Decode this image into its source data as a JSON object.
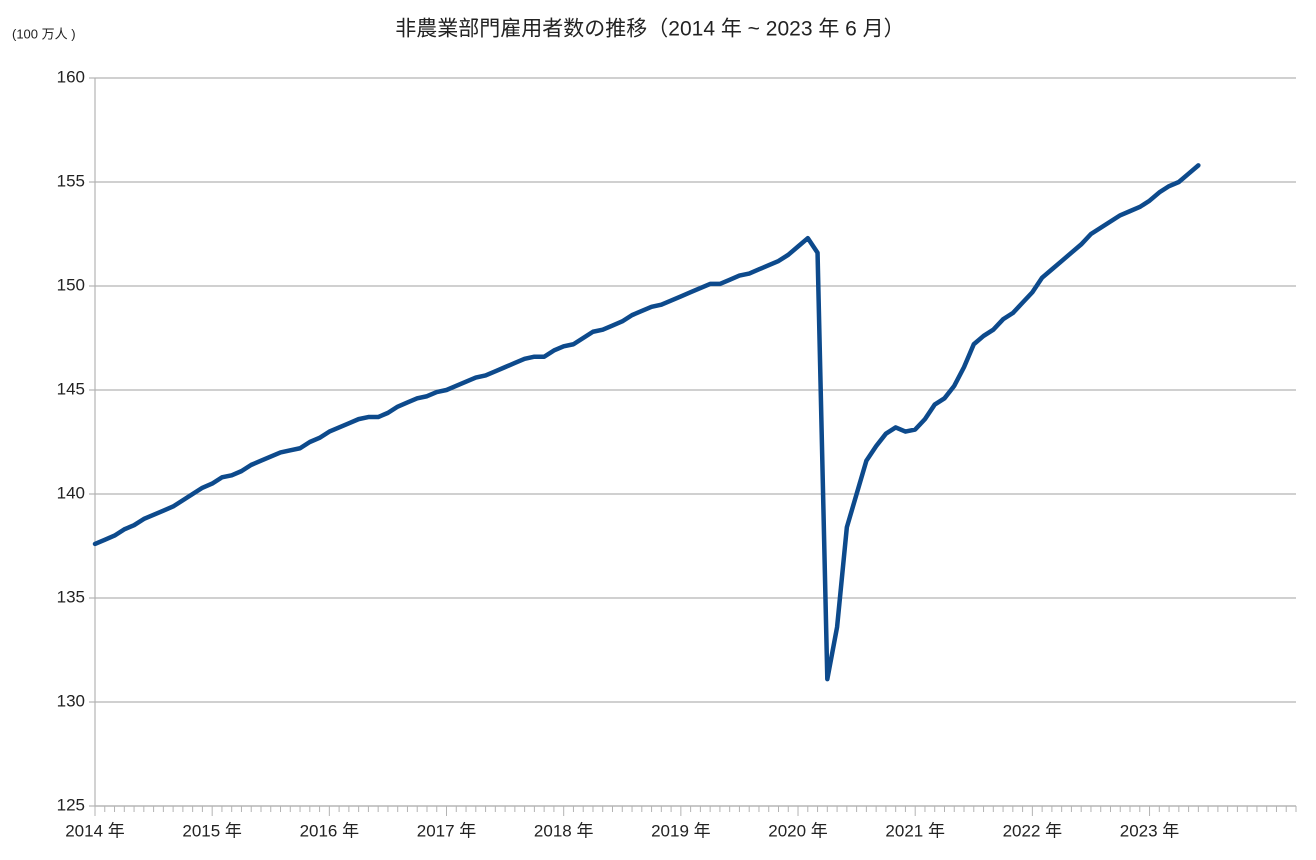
{
  "chart_data": {
    "type": "line",
    "title": "非農業部門雇用者数の推移（2014 年 ~ 2023 年 6 月）",
    "y_unit": "(100 万人 )",
    "categories": [
      "2014 年",
      null,
      null,
      null,
      null,
      null,
      null,
      null,
      null,
      null,
      null,
      null,
      "2015 年",
      null,
      null,
      null,
      null,
      null,
      null,
      null,
      null,
      null,
      null,
      null,
      "2016 年",
      null,
      null,
      null,
      null,
      null,
      null,
      null,
      null,
      null,
      null,
      null,
      "2017 年",
      null,
      null,
      null,
      null,
      null,
      null,
      null,
      null,
      null,
      null,
      null,
      "2018 年",
      null,
      null,
      null,
      null,
      null,
      null,
      null,
      null,
      null,
      null,
      null,
      "2019 年",
      null,
      null,
      null,
      null,
      null,
      null,
      null,
      null,
      null,
      null,
      null,
      "2020 年",
      null,
      null,
      null,
      null,
      null,
      null,
      null,
      null,
      null,
      null,
      null,
      "2021 年",
      null,
      null,
      null,
      null,
      null,
      null,
      null,
      null,
      null,
      null,
      null,
      "2022 年",
      null,
      null,
      null,
      null,
      null,
      null,
      null,
      null,
      null,
      null,
      null,
      "2023 年",
      null,
      null,
      null,
      null,
      null,
      null,
      null,
      null,
      null,
      null,
      null,
      null,
      null,
      null
    ],
    "series": [
      {
        "color": "#0d4a8c",
        "values": [
          137.6,
          137.8,
          138.0,
          138.3,
          138.5,
          138.8,
          139.0,
          139.2,
          139.4,
          139.7,
          140.0,
          140.3,
          140.5,
          140.8,
          140.9,
          141.1,
          141.4,
          141.6,
          141.8,
          142.0,
          142.1,
          142.2,
          142.5,
          142.7,
          143.0,
          143.2,
          143.4,
          143.6,
          143.7,
          143.7,
          143.9,
          144.2,
          144.4,
          144.6,
          144.7,
          144.9,
          145.0,
          145.2,
          145.4,
          145.6,
          145.7,
          145.9,
          146.1,
          146.3,
          146.5,
          146.6,
          146.6,
          146.9,
          147.1,
          147.2,
          147.5,
          147.8,
          147.9,
          148.1,
          148.3,
          148.6,
          148.8,
          149.0,
          149.1,
          149.3,
          149.5,
          149.7,
          149.9,
          150.1,
          150.1,
          150.3,
          150.5,
          150.6,
          150.8,
          151.0,
          151.2,
          151.5,
          151.9,
          152.3,
          151.6,
          131.1,
          133.6,
          138.4,
          140.0,
          141.6,
          142.3,
          142.9,
          143.2,
          143.0,
          143.1,
          143.6,
          144.3,
          144.6,
          145.2,
          146.1,
          147.2,
          147.6,
          147.9,
          148.4,
          148.7,
          149.2,
          149.7,
          150.4,
          150.8,
          151.2,
          151.6,
          152.0,
          152.5,
          152.8,
          153.1,
          153.4,
          153.6,
          153.8,
          154.1,
          154.5,
          154.8,
          155.0,
          155.4,
          155.8,
          null,
          null,
          null,
          null,
          null,
          null,
          null,
          null,
          null
        ]
      }
    ],
    "ylim": [
      125,
      160
    ],
    "yticks": [
      125,
      130,
      135,
      140,
      145,
      150,
      155,
      160
    ],
    "grid": true
  }
}
